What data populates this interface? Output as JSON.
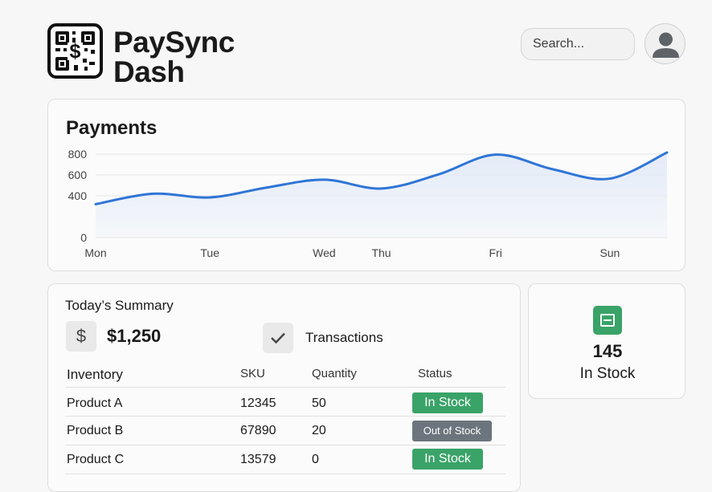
{
  "header": {
    "brand_line1": "PaySync",
    "brand_line2": "Dash",
    "search_placeholder": "Search...",
    "logo_icon": "qr-dollar-icon",
    "avatar_icon": "user-avatar-icon"
  },
  "payments": {
    "title": "Payments",
    "chart_data": {
      "type": "area",
      "title": "Payments",
      "x_tick_labels": [
        "Mon",
        "Tue",
        "Wed",
        "Thu",
        "Fri",
        "Sun"
      ],
      "y_ticks": [
        0,
        400,
        600,
        800
      ],
      "points": [
        {
          "x": "Mon",
          "y": 320
        },
        {
          "x": "",
          "y": 420
        },
        {
          "x": "Tue",
          "y": 385
        },
        {
          "x": "",
          "y": 480
        },
        {
          "x": "Wed",
          "y": 555
        },
        {
          "x": "Thu",
          "y": 470
        },
        {
          "x": "",
          "y": 605
        },
        {
          "x": "Fri",
          "y": 795
        },
        {
          "x": "",
          "y": 655
        },
        {
          "x": "Sun",
          "y": 565
        },
        {
          "x": "",
          "y": 815
        }
      ],
      "line_color": "#2f75d6",
      "fill_color": "#e3ebf8",
      "grid": true
    }
  },
  "summary": {
    "title": "Today’s Summary",
    "amount_icon": "dollar-icon",
    "amount": "$1,250",
    "transactions_icon": "check-icon",
    "transactions_label": "Transactions",
    "inventory": {
      "headers": [
        "Inventory",
        "SKU",
        "Quantity",
        "Status"
      ],
      "rows": [
        {
          "product": "Product A",
          "sku": "12345",
          "qty": "50",
          "status": "In Stock",
          "state": "in"
        },
        {
          "product": "Product B",
          "sku": "67890",
          "qty": "20",
          "status": "Out of Stock",
          "state": "out"
        },
        {
          "product": "Product C",
          "sku": "13579",
          "qty": "0",
          "status": "In Stock",
          "state": "in"
        }
      ]
    }
  },
  "stock": {
    "icon": "inventory-box-icon",
    "count": "145",
    "label": "In Stock"
  },
  "colors": {
    "accent": "#2f75d6",
    "in_stock": "#3aa368",
    "out_of_stock": "#6c757d"
  }
}
